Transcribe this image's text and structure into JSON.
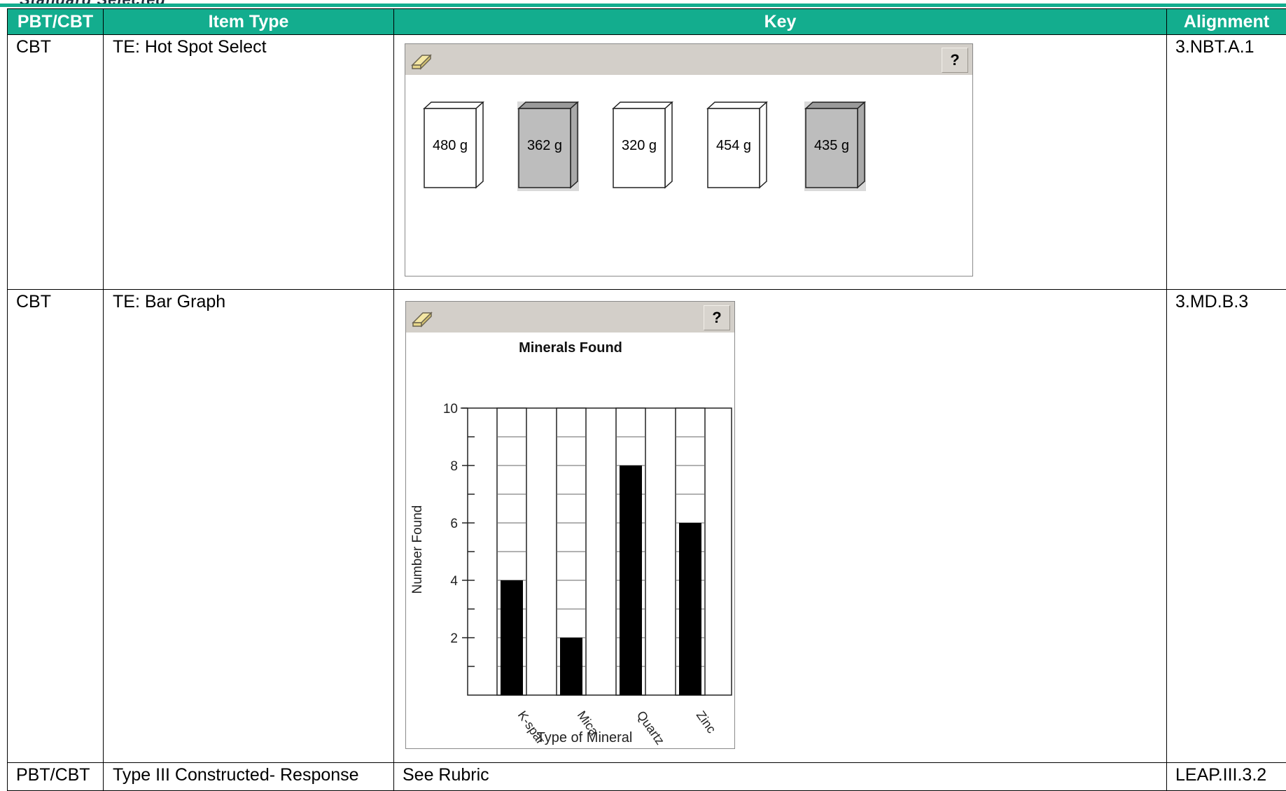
{
  "header": {
    "fragment": "Standard Selected",
    "columns": [
      "PBT/CBT",
      "Item Type",
      "Key",
      "Alignment"
    ]
  },
  "rows": [
    {
      "mode": "CBT",
      "item_type": "TE: Hot Spot Select",
      "alignment": "3.NBT.A.1",
      "toolbar": {
        "eraser_icon": "eraser-icon",
        "help_label": "?"
      },
      "boxes": [
        {
          "label": "480 g",
          "selected": false
        },
        {
          "label": "362 g",
          "selected": true
        },
        {
          "label": "320 g",
          "selected": false
        },
        {
          "label": "454 g",
          "selected": false
        },
        {
          "label": "435 g",
          "selected": true
        }
      ]
    },
    {
      "mode": "CBT",
      "item_type": "TE: Bar Graph",
      "alignment": "3.MD.B.3",
      "toolbar": {
        "eraser_icon": "eraser-icon",
        "help_label": "?"
      }
    },
    {
      "mode": "PBT/CBT",
      "item_type": "Type III Constructed- Response",
      "key": "See Rubric",
      "alignment": "LEAP.III.3.2"
    }
  ],
  "colors": {
    "header_bg": "#13ad8e",
    "selected_box": "#bdbdbd",
    "toolbar_bg": "#d3cfc9"
  },
  "chart_data": {
    "type": "bar",
    "title": "Minerals Found",
    "xlabel": "Type of Mineral",
    "ylabel": "Number Found",
    "categories": [
      "K-spar",
      "Mica",
      "Quartz",
      "Zinc"
    ],
    "values": [
      4,
      2,
      8,
      6
    ],
    "ylim": [
      0,
      10
    ],
    "yticks": [
      "2",
      "4",
      "6",
      "8",
      "10"
    ],
    "grid": true
  }
}
